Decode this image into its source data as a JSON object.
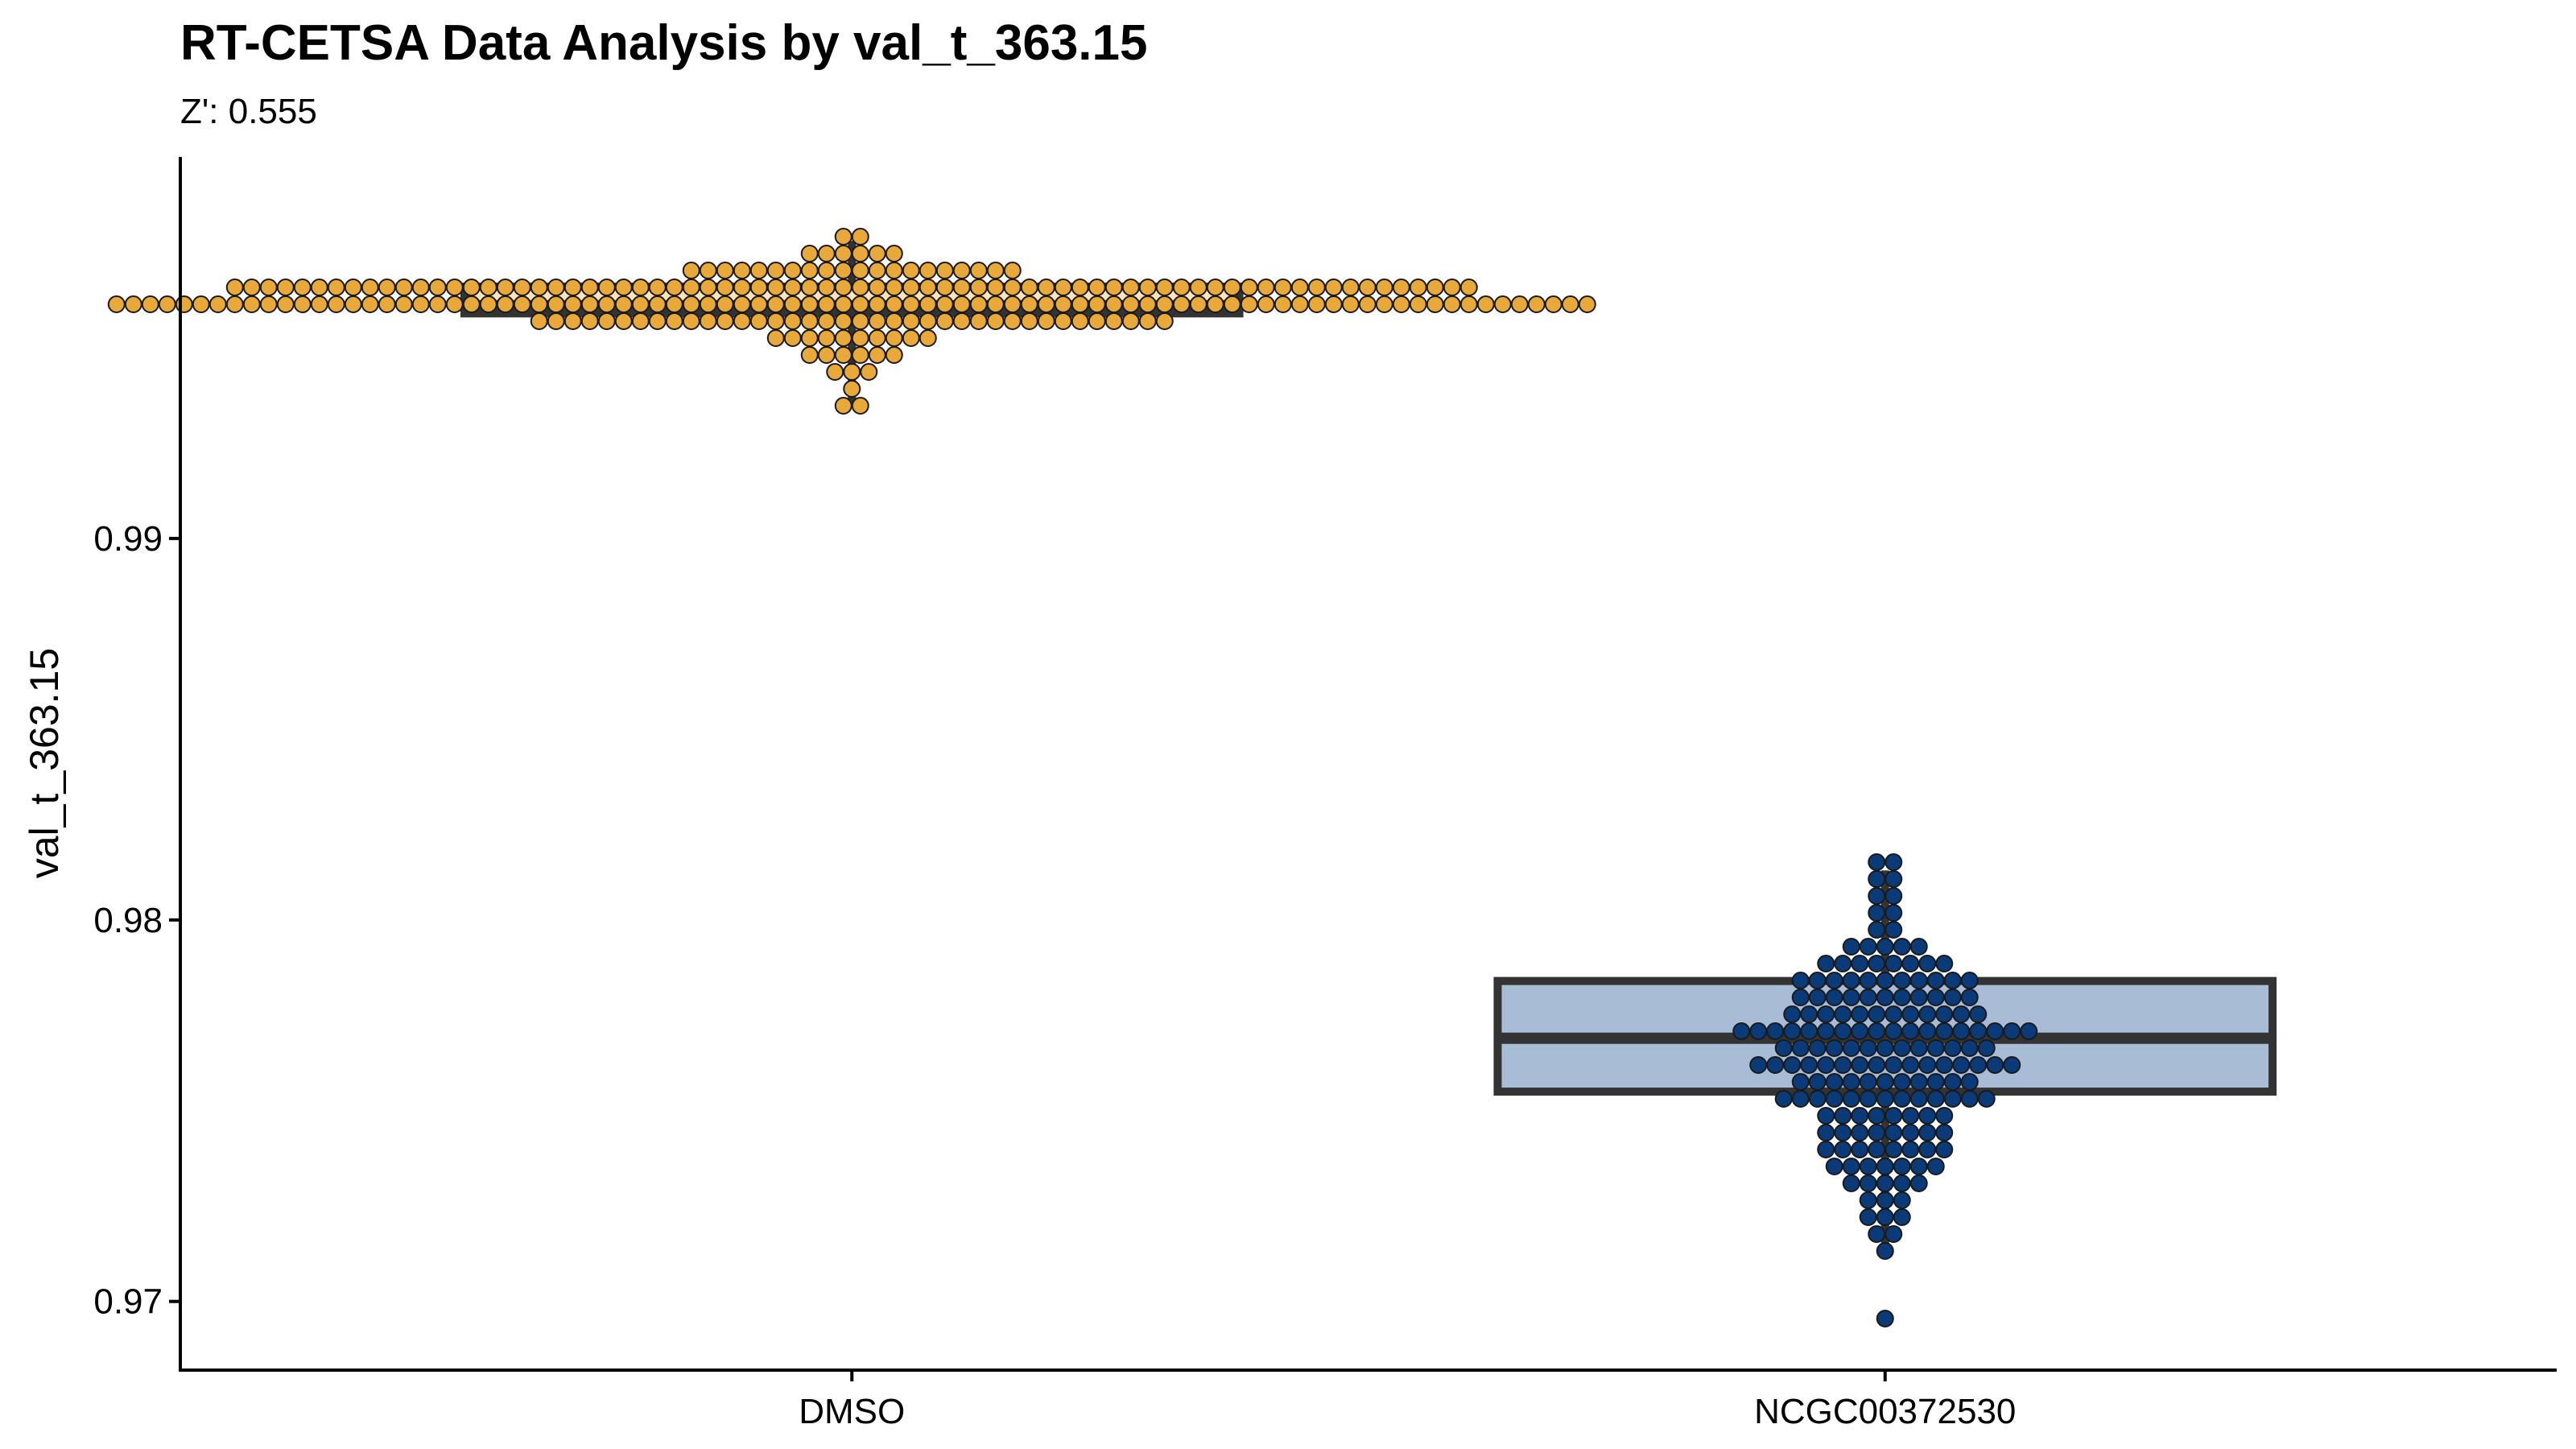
{
  "chart_data": {
    "type": "box",
    "title": "RT-CETSA Data Analysis by val_t_363.15",
    "subtitle": "Z': 0.555",
    "xlabel": "",
    "ylabel": "val_t_363.15",
    "ylim": [
      0.9682,
      1.0
    ],
    "y_ticks": [
      0.97,
      0.98,
      0.99
    ],
    "y_tick_labels": [
      "0.97",
      "0.98",
      "0.99"
    ],
    "grid": false,
    "legend": "none",
    "categories": [
      "DMSO",
      "NCGC00372530"
    ],
    "series": [
      {
        "category": "DMSO",
        "fill": "#FAE5C0",
        "point_color": "#E8A93A",
        "q1": 0.9959,
        "median": 0.9961,
        "q3": 0.9966,
        "whisker_low": 0.9935,
        "whisker_high": 0.9978,
        "points": [
          0.9934,
          0.9937,
          0.994,
          0.9942,
          0.9944,
          0.9945,
          0.9946,
          0.9947,
          0.9948,
          0.9949,
          0.995,
          0.995,
          0.9951,
          0.9951,
          0.9952,
          0.9952,
          0.9953,
          0.9953,
          0.9953,
          0.9954,
          0.9954,
          0.9954,
          0.9955,
          0.9955,
          0.9955,
          0.9955,
          0.9956,
          0.9956,
          0.9956,
          0.9956,
          0.9956,
          0.9957,
          0.9957,
          0.9957,
          0.9957,
          0.9957,
          0.9957,
          0.9958,
          0.9958,
          0.9958,
          0.9958,
          0.9958,
          0.9958,
          0.9958,
          0.9959,
          0.9959,
          0.9959,
          0.9959,
          0.9959,
          0.9959,
          0.9959,
          0.9959,
          0.9959,
          0.9959,
          0.9959,
          0.9959,
          0.9959,
          0.9959,
          0.9959,
          0.9959,
          0.996,
          0.996,
          0.996,
          0.996,
          0.996,
          0.996,
          0.996,
          0.996,
          0.996,
          0.996,
          0.996,
          0.996,
          0.996,
          0.996,
          0.996,
          0.996,
          0.996,
          0.996,
          0.996,
          0.996,
          0.996,
          0.996,
          0.996,
          0.996,
          0.9961,
          0.9961,
          0.9961,
          0.9961,
          0.9961,
          0.9961,
          0.9961,
          0.9961,
          0.9961,
          0.9961,
          0.9961,
          0.9961,
          0.9961,
          0.9961,
          0.9961,
          0.9961,
          0.9961,
          0.9961,
          0.9961,
          0.9961,
          0.9961,
          0.9961,
          0.9961,
          0.9961,
          0.9962,
          0.9962,
          0.9962,
          0.9962,
          0.9962,
          0.9962,
          0.9962,
          0.9962,
          0.9962,
          0.9962,
          0.9962,
          0.9962,
          0.9962,
          0.9962,
          0.9962,
          0.9962,
          0.9962,
          0.9962,
          0.9962,
          0.9962,
          0.9962,
          0.9962,
          0.9963,
          0.9963,
          0.9963,
          0.9963,
          0.9963,
          0.9963,
          0.9963,
          0.9963,
          0.9963,
          0.9963,
          0.9963,
          0.9963,
          0.9963,
          0.9963,
          0.9963,
          0.9963,
          0.9963,
          0.9963,
          0.9964,
          0.9964,
          0.9964,
          0.9964,
          0.9964,
          0.9964,
          0.9964,
          0.9964,
          0.9964,
          0.9964,
          0.9964,
          0.9964,
          0.9964,
          0.9964,
          0.9964,
          0.9964,
          0.9965,
          0.9965,
          0.9965,
          0.9965,
          0.9965,
          0.9965,
          0.9965,
          0.9965,
          0.9965,
          0.9965,
          0.9965,
          0.9965,
          0.9965,
          0.9965,
          0.9966,
          0.9966,
          0.9966,
          0.9966,
          0.9966,
          0.9966,
          0.9966,
          0.9966,
          0.9966,
          0.9966,
          0.9966,
          0.9966,
          0.9967,
          0.9967,
          0.9967,
          0.9967,
          0.9967,
          0.9967,
          0.9967,
          0.9967,
          0.9967,
          0.9967,
          0.9967,
          0.9967,
          0.9967,
          0.9967,
          0.9967,
          0.9967,
          0.9967,
          0.9967,
          0.9967,
          0.9968,
          0.9968,
          0.9968,
          0.9968,
          0.9968,
          0.9968,
          0.9968,
          0.9968,
          0.9968,
          0.9968,
          0.9968,
          0.9968,
          0.9968,
          0.9969,
          0.9969,
          0.9969,
          0.9969,
          0.9969,
          0.9969,
          0.9969,
          0.997,
          0.997,
          0.997,
          0.997,
          0.997,
          0.997,
          0.9971,
          0.9971,
          0.9971,
          0.9971,
          0.9972,
          0.9972,
          0.9972,
          0.9973,
          0.9973,
          0.9974,
          0.9974,
          0.9975,
          0.9976,
          0.9977,
          0.9978
        ]
      },
      {
        "category": "NCGC00372530",
        "fill": "#A8BCD6",
        "point_color": "#0A3A78",
        "q1": 0.9755,
        "median": 0.9769,
        "q3": 0.9784,
        "whisker_low": 0.9714,
        "whisker_high": 0.9813,
        "points": [
          0.9696,
          0.9714,
          0.9716,
          0.9718,
          0.972,
          0.9722,
          0.9724,
          0.9726,
          0.9727,
          0.9728,
          0.9729,
          0.973,
          0.9731,
          0.9732,
          0.9733,
          0.9734,
          0.9734,
          0.9735,
          0.9735,
          0.9736,
          0.9737,
          0.9737,
          0.9738,
          0.9739,
          0.974,
          0.974,
          0.9741,
          0.9741,
          0.9742,
          0.9742,
          0.9743,
          0.9743,
          0.9744,
          0.9744,
          0.9745,
          0.9745,
          0.9746,
          0.9746,
          0.9747,
          0.9747,
          0.9748,
          0.9748,
          0.9749,
          0.9749,
          0.975,
          0.975,
          0.9751,
          0.9751,
          0.9752,
          0.9752,
          0.9752,
          0.9753,
          0.9753,
          0.9753,
          0.9754,
          0.9754,
          0.9755,
          0.9755,
          0.9755,
          0.9756,
          0.9756,
          0.9756,
          0.9757,
          0.9757,
          0.9758,
          0.9758,
          0.9758,
          0.9759,
          0.9759,
          0.9759,
          0.976,
          0.976,
          0.976,
          0.976,
          0.9761,
          0.9761,
          0.9761,
          0.9762,
          0.9762,
          0.9762,
          0.9763,
          0.9763,
          0.9763,
          0.9764,
          0.9764,
          0.9764,
          0.9765,
          0.9765,
          0.9765,
          0.9766,
          0.9766,
          0.9766,
          0.9766,
          0.9767,
          0.9767,
          0.9767,
          0.9768,
          0.9768,
          0.9768,
          0.9769,
          0.9769,
          0.9769,
          0.9769,
          0.977,
          0.977,
          0.977,
          0.977,
          0.9771,
          0.9771,
          0.9771,
          0.9772,
          0.9772,
          0.9772,
          0.9773,
          0.9773,
          0.9773,
          0.9773,
          0.9774,
          0.9774,
          0.9774,
          0.9775,
          0.9775,
          0.9775,
          0.9776,
          0.9776,
          0.9776,
          0.9777,
          0.9777,
          0.9777,
          0.9778,
          0.9778,
          0.9778,
          0.9779,
          0.9779,
          0.9779,
          0.978,
          0.978,
          0.978,
          0.9781,
          0.9781,
          0.9782,
          0.9782,
          0.9782,
          0.9783,
          0.9783,
          0.9784,
          0.9784,
          0.9785,
          0.9785,
          0.9786,
          0.9786,
          0.9787,
          0.9787,
          0.9788,
          0.9788,
          0.9789,
          0.9789,
          0.979,
          0.979,
          0.9791,
          0.9792,
          0.9793,
          0.9794,
          0.9795,
          0.9797,
          0.9799,
          0.9801,
          0.9804,
          0.9806,
          0.9808,
          0.981,
          0.9812,
          0.9813,
          0.9814
        ]
      }
    ]
  }
}
